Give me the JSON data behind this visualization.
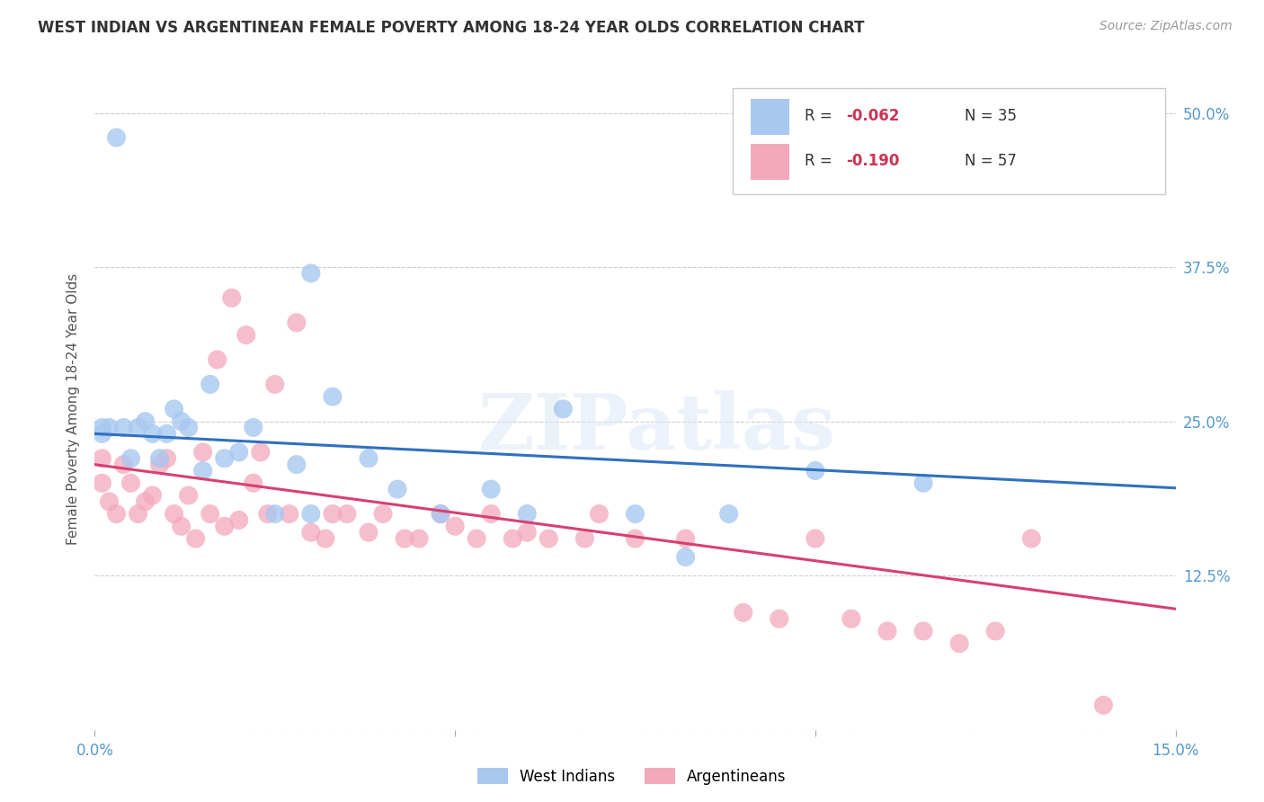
{
  "title": "WEST INDIAN VS ARGENTINEAN FEMALE POVERTY AMONG 18-24 YEAR OLDS CORRELATION CHART",
  "source": "Source: ZipAtlas.com",
  "ylabel": "Female Poverty Among 18-24 Year Olds",
  "xlim": [
    0.0,
    0.15
  ],
  "ylim": [
    0.0,
    0.52
  ],
  "xtick_positions": [
    0.0,
    0.05,
    0.1,
    0.15
  ],
  "xtick_labels": [
    "0.0%",
    "",
    "",
    "15.0%"
  ],
  "ytick_positions": [
    0.0,
    0.125,
    0.25,
    0.375,
    0.5
  ],
  "ytick_labels_right": [
    "",
    "12.5%",
    "25.0%",
    "37.5%",
    "50.0%"
  ],
  "west_indian_fill": "#a8c8f0",
  "argentinean_fill": "#f4a8bc",
  "trend_west_color": "#3070c0",
  "trend_arg_color": "#d84070",
  "west_indian_label": "West Indians",
  "argentinean_label": "Argentineans",
  "r_west": "-0.062",
  "n_west": "35",
  "r_arg": "-0.190",
  "n_arg": "57",
  "watermark_text": "ZIPatlas",
  "background_color": "#ffffff",
  "grid_color": "#cccccc",
  "west_x": [
    0.001,
    0.001,
    0.002,
    0.003,
    0.004,
    0.005,
    0.006,
    0.007,
    0.008,
    0.009,
    0.01,
    0.011,
    0.012,
    0.013,
    0.015,
    0.016,
    0.018,
    0.02,
    0.022,
    0.025,
    0.028,
    0.03,
    0.033,
    0.038,
    0.042,
    0.048,
    0.055,
    0.06,
    0.065,
    0.075,
    0.082,
    0.03,
    0.088,
    0.1,
    0.115
  ],
  "west_y": [
    0.245,
    0.24,
    0.245,
    0.48,
    0.245,
    0.22,
    0.245,
    0.25,
    0.24,
    0.22,
    0.24,
    0.26,
    0.25,
    0.245,
    0.21,
    0.28,
    0.22,
    0.225,
    0.245,
    0.175,
    0.215,
    0.175,
    0.27,
    0.22,
    0.195,
    0.175,
    0.195,
    0.175,
    0.26,
    0.175,
    0.14,
    0.37,
    0.175,
    0.21,
    0.2
  ],
  "arg_x": [
    0.001,
    0.001,
    0.002,
    0.003,
    0.004,
    0.005,
    0.006,
    0.007,
    0.008,
    0.009,
    0.01,
    0.011,
    0.012,
    0.013,
    0.014,
    0.015,
    0.016,
    0.017,
    0.018,
    0.019,
    0.02,
    0.021,
    0.022,
    0.023,
    0.024,
    0.025,
    0.027,
    0.028,
    0.03,
    0.032,
    0.033,
    0.035,
    0.038,
    0.04,
    0.043,
    0.045,
    0.048,
    0.05,
    0.053,
    0.055,
    0.058,
    0.06,
    0.063,
    0.068,
    0.07,
    0.075,
    0.082,
    0.09,
    0.095,
    0.1,
    0.105,
    0.11,
    0.115,
    0.12,
    0.125,
    0.13,
    0.14
  ],
  "arg_y": [
    0.22,
    0.2,
    0.185,
    0.175,
    0.215,
    0.2,
    0.175,
    0.185,
    0.19,
    0.215,
    0.22,
    0.175,
    0.165,
    0.19,
    0.155,
    0.225,
    0.175,
    0.3,
    0.165,
    0.35,
    0.17,
    0.32,
    0.2,
    0.225,
    0.175,
    0.28,
    0.175,
    0.33,
    0.16,
    0.155,
    0.175,
    0.175,
    0.16,
    0.175,
    0.155,
    0.155,
    0.175,
    0.165,
    0.155,
    0.175,
    0.155,
    0.16,
    0.155,
    0.155,
    0.175,
    0.155,
    0.155,
    0.095,
    0.09,
    0.155,
    0.09,
    0.08,
    0.08,
    0.07,
    0.08,
    0.155,
    0.02
  ]
}
